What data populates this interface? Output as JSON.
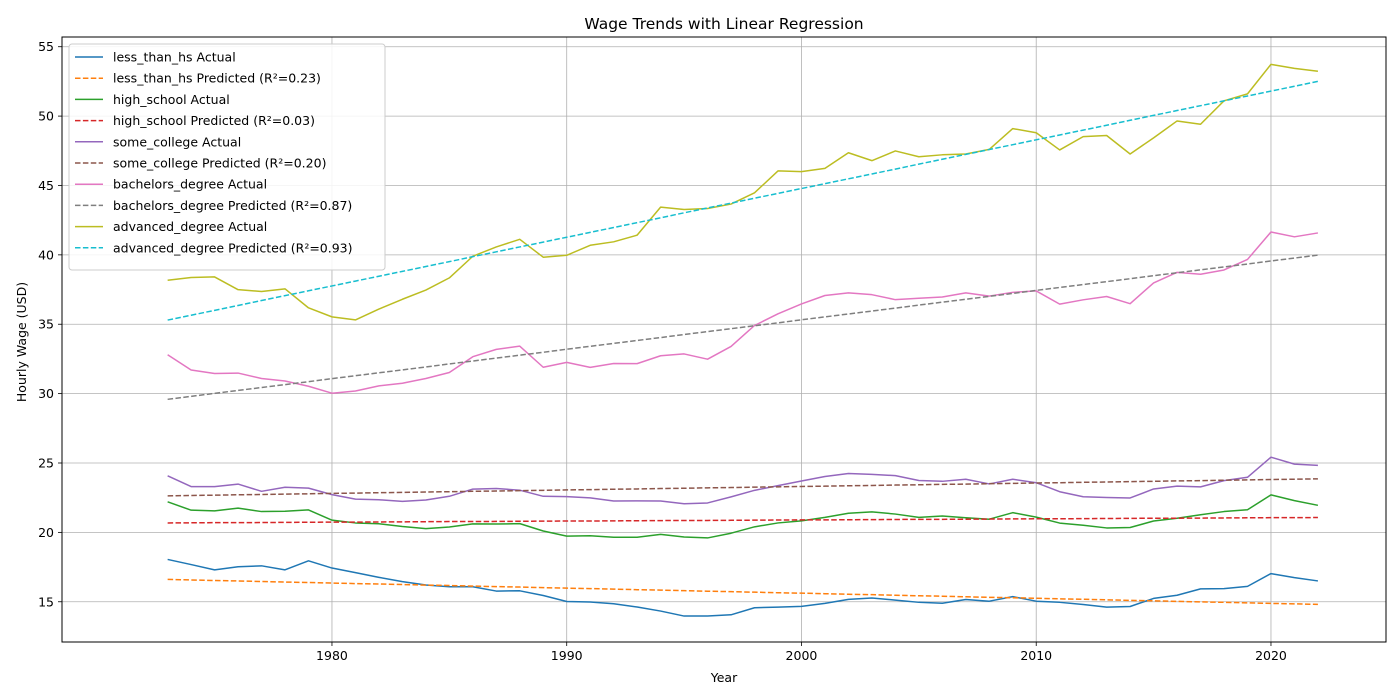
{
  "chart_data": {
    "type": "line",
    "title": "Wage Trends with Linear Regression",
    "xlabel": "Year",
    "ylabel": "Hourly Wage (USD)",
    "xlim": [
      1968.5,
      2024.9
    ],
    "ylim": [
      12.1,
      55.7
    ],
    "xticks": [
      1980,
      1990,
      2000,
      2010,
      2020
    ],
    "yticks": [
      15,
      20,
      25,
      30,
      35,
      40,
      45,
      50,
      55
    ],
    "grid": true,
    "legend": "top-left",
    "x": [
      1973,
      1974,
      1975,
      1976,
      1977,
      1978,
      1979,
      1980,
      1981,
      1982,
      1983,
      1984,
      1985,
      1986,
      1987,
      1988,
      1989,
      1990,
      1991,
      1992,
      1993,
      1994,
      1995,
      1996,
      1997,
      1998,
      1999,
      2000,
      2001,
      2002,
      2003,
      2004,
      2005,
      2006,
      2007,
      2008,
      2009,
      2010,
      2011,
      2012,
      2013,
      2014,
      2015,
      2016,
      2017,
      2018,
      2019,
      2020,
      2021,
      2022
    ],
    "series": [
      {
        "name": "less_than_hs Actual",
        "style": "solid",
        "color": "#1f77b4",
        "values": [
          18.05,
          17.68,
          17.3,
          17.52,
          17.59,
          17.3,
          17.95,
          17.43,
          17.1,
          16.76,
          16.45,
          16.21,
          16.08,
          16.08,
          15.77,
          15.79,
          15.45,
          15.02,
          14.98,
          14.86,
          14.62,
          14.33,
          13.97,
          13.97,
          14.06,
          14.57,
          14.61,
          14.67,
          14.88,
          15.17,
          15.27,
          15.12,
          14.96,
          14.89,
          15.16,
          15.04,
          15.37,
          15.04,
          14.96,
          14.8,
          14.61,
          14.66,
          15.24,
          15.47,
          15.93,
          15.95,
          16.11,
          17.03,
          16.74,
          16.5
        ]
      },
      {
        "name": "less_than_hs Predicted (R²=0.23)",
        "style": "dashed",
        "color": "#ff7f0e",
        "values": [
          16.61,
          16.57,
          16.53,
          16.5,
          16.46,
          16.42,
          16.39,
          16.35,
          16.31,
          16.28,
          16.24,
          16.2,
          16.17,
          16.13,
          16.09,
          16.06,
          16.02,
          15.98,
          15.95,
          15.91,
          15.87,
          15.84,
          15.8,
          15.76,
          15.73,
          15.69,
          15.65,
          15.62,
          15.58,
          15.54,
          15.51,
          15.47,
          15.43,
          15.4,
          15.36,
          15.32,
          15.29,
          15.25,
          15.21,
          15.18,
          15.14,
          15.1,
          15.07,
          15.03,
          14.99,
          14.96,
          14.92,
          14.88,
          14.85,
          14.81
        ]
      },
      {
        "name": "high_school Actual",
        "style": "solid",
        "color": "#2ca02c",
        "values": [
          22.2,
          21.6,
          21.55,
          21.75,
          21.5,
          21.52,
          21.62,
          20.88,
          20.68,
          20.62,
          20.42,
          20.27,
          20.39,
          20.61,
          20.6,
          20.63,
          20.1,
          19.73,
          19.76,
          19.65,
          19.65,
          19.86,
          19.67,
          19.6,
          19.94,
          20.4,
          20.68,
          20.83,
          21.08,
          21.38,
          21.48,
          21.32,
          21.08,
          21.18,
          21.05,
          20.95,
          21.42,
          21.1,
          20.67,
          20.51,
          20.32,
          20.35,
          20.82,
          21.02,
          21.27,
          21.5,
          21.63,
          22.7,
          22.29,
          21.95
        ]
      },
      {
        "name": "high_school Predicted (R²=0.03)",
        "style": "dashed",
        "color": "#d62728",
        "values": [
          20.68,
          20.69,
          20.7,
          20.7,
          20.71,
          20.72,
          20.73,
          20.74,
          20.74,
          20.75,
          20.76,
          20.77,
          20.78,
          20.78,
          20.79,
          20.8,
          20.81,
          20.82,
          20.82,
          20.83,
          20.84,
          20.85,
          20.86,
          20.86,
          20.87,
          20.88,
          20.89,
          20.9,
          20.9,
          20.91,
          20.92,
          20.93,
          20.94,
          20.94,
          20.95,
          20.96,
          20.97,
          20.98,
          20.98,
          20.99,
          21.0,
          21.01,
          21.02,
          21.02,
          21.03,
          21.04,
          21.05,
          21.06,
          21.06,
          21.07
        ]
      },
      {
        "name": "some_college Actual",
        "style": "solid",
        "color": "#9467bd",
        "values": [
          24.08,
          23.3,
          23.3,
          23.48,
          22.96,
          23.25,
          23.19,
          22.72,
          22.4,
          22.35,
          22.23,
          22.33,
          22.6,
          23.12,
          23.16,
          23.04,
          22.6,
          22.58,
          22.49,
          22.26,
          22.27,
          22.26,
          22.06,
          22.12,
          22.56,
          23.03,
          23.37,
          23.7,
          24.03,
          24.24,
          24.18,
          24.09,
          23.74,
          23.68,
          23.83,
          23.49,
          23.83,
          23.58,
          22.93,
          22.57,
          22.51,
          22.48,
          23.13,
          23.33,
          23.28,
          23.73,
          23.97,
          25.42,
          24.92,
          24.83
        ]
      },
      {
        "name": "some_college Predicted (R²=0.20)",
        "style": "dashed",
        "color": "#8c564b",
        "values": [
          22.63,
          22.66,
          22.68,
          22.71,
          22.73,
          22.76,
          22.78,
          22.81,
          22.83,
          22.86,
          22.88,
          22.91,
          22.93,
          22.96,
          22.98,
          23.01,
          23.03,
          23.06,
          23.08,
          23.11,
          23.13,
          23.16,
          23.18,
          23.21,
          23.23,
          23.26,
          23.28,
          23.31,
          23.33,
          23.36,
          23.38,
          23.41,
          23.43,
          23.46,
          23.48,
          23.51,
          23.53,
          23.56,
          23.58,
          23.61,
          23.63,
          23.66,
          23.68,
          23.71,
          23.73,
          23.76,
          23.78,
          23.81,
          23.83,
          23.86
        ]
      },
      {
        "name": "bachelors_degree Actual",
        "style": "solid",
        "color": "#e377c2",
        "values": [
          32.8,
          31.7,
          31.45,
          31.48,
          31.09,
          30.91,
          30.53,
          30.03,
          30.19,
          30.56,
          30.75,
          31.09,
          31.52,
          32.66,
          33.19,
          33.42,
          31.9,
          32.25,
          31.89,
          32.17,
          32.16,
          32.73,
          32.86,
          32.48,
          33.4,
          34.91,
          35.75,
          36.46,
          37.07,
          37.26,
          37.13,
          36.77,
          36.87,
          36.96,
          37.26,
          37.03,
          37.3,
          37.4,
          36.45,
          36.76,
          37.0,
          36.48,
          37.98,
          38.74,
          38.6,
          38.91,
          39.67,
          41.65,
          41.3,
          41.58
        ]
      },
      {
        "name": "bachelors_degree Predicted (R²=0.87)",
        "style": "dashed",
        "color": "#7f7f7f",
        "values": [
          29.59,
          29.8,
          30.02,
          30.23,
          30.44,
          30.65,
          30.86,
          31.08,
          31.29,
          31.5,
          31.71,
          31.92,
          32.14,
          32.35,
          32.56,
          32.77,
          32.98,
          33.2,
          33.41,
          33.62,
          33.83,
          34.04,
          34.26,
          34.47,
          34.68,
          34.89,
          35.1,
          35.32,
          35.53,
          35.74,
          35.95,
          36.16,
          36.38,
          36.59,
          36.8,
          37.01,
          37.22,
          37.44,
          37.65,
          37.86,
          38.07,
          38.28,
          38.5,
          38.71,
          38.92,
          39.13,
          39.34,
          39.56,
          39.77,
          39.98
        ]
      },
      {
        "name": "advanced_degree Actual",
        "style": "solid",
        "color": "#bcbd22",
        "values": [
          38.17,
          38.37,
          38.41,
          37.49,
          37.36,
          37.55,
          36.18,
          35.53,
          35.31,
          36.09,
          36.8,
          37.46,
          38.34,
          39.9,
          40.57,
          41.12,
          39.83,
          39.97,
          40.69,
          40.94,
          41.42,
          43.44,
          43.27,
          43.34,
          43.66,
          44.47,
          46.05,
          46.0,
          46.23,
          47.36,
          46.79,
          47.49,
          47.07,
          47.21,
          47.27,
          47.6,
          49.1,
          48.8,
          47.56,
          48.52,
          48.6,
          47.27,
          48.43,
          49.65,
          49.41,
          51.1,
          51.6,
          53.73,
          53.44,
          53.23
        ]
      },
      {
        "name": "advanced_degree Predicted (R²=0.93)",
        "style": "dashed",
        "color": "#17becf",
        "values": [
          35.3,
          35.65,
          36.0,
          36.35,
          36.71,
          37.06,
          37.41,
          37.76,
          38.11,
          38.46,
          38.81,
          39.16,
          39.51,
          39.87,
          40.22,
          40.57,
          40.92,
          41.27,
          41.62,
          41.97,
          42.32,
          42.67,
          43.03,
          43.38,
          43.73,
          44.08,
          44.43,
          44.78,
          45.13,
          45.48,
          45.83,
          46.18,
          46.54,
          46.89,
          47.24,
          47.59,
          47.94,
          48.29,
          48.64,
          48.99,
          49.34,
          49.7,
          50.05,
          50.4,
          50.75,
          51.1,
          51.45,
          51.8,
          52.15,
          52.5
        ]
      }
    ]
  }
}
